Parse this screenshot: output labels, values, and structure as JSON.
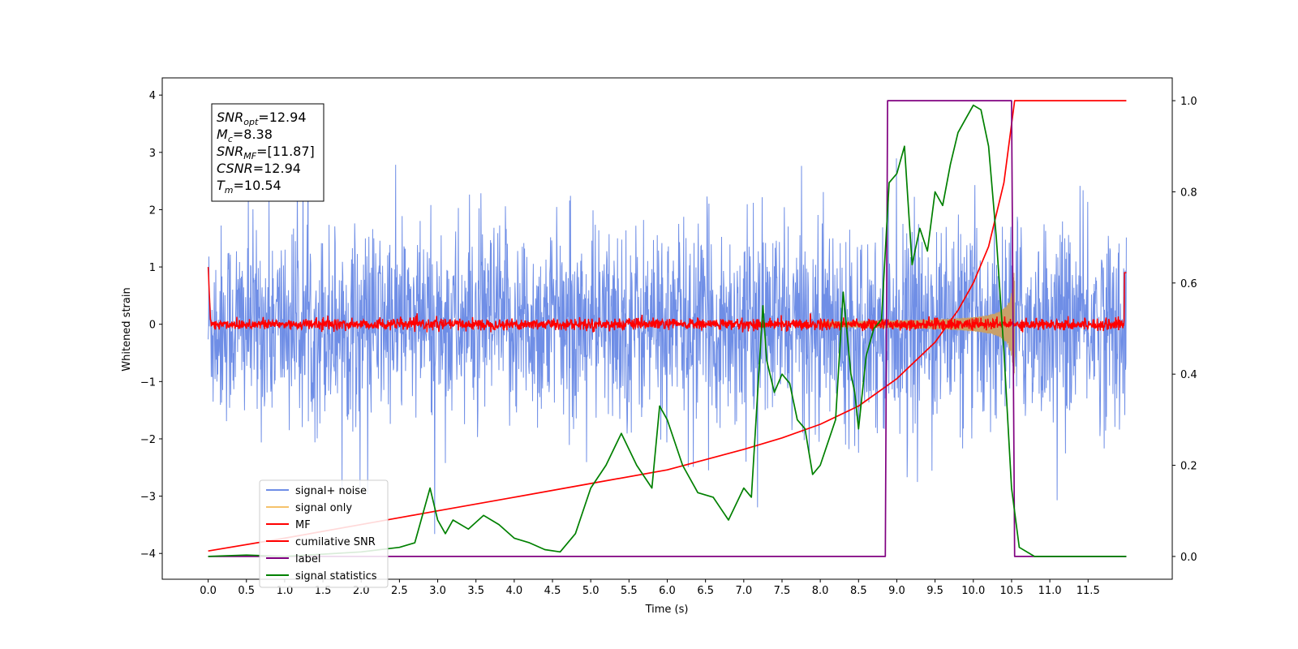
{
  "chart_data": {
    "type": "line",
    "xlabel": "Time (s)",
    "ylabel": "Whitened strain",
    "xlim": [
      -0.6,
      12.6
    ],
    "ylim_left": [
      -4.45,
      4.3
    ],
    "ylim_right": [
      -0.05,
      1.05
    ],
    "x_ticks": [
      "0.0",
      "0.5",
      "1.0",
      "1.5",
      "2.0",
      "2.5",
      "3.0",
      "3.5",
      "4.0",
      "4.5",
      "5.0",
      "5.5",
      "6.0",
      "6.5",
      "7.0",
      "7.5",
      "8.0",
      "8.5",
      "9.0",
      "9.5",
      "10.0",
      "10.5",
      "11.0",
      "11.5"
    ],
    "y_left_ticks": [
      "4",
      "3",
      "2",
      "1",
      "0",
      "−1",
      "−2",
      "−3",
      "−4"
    ],
    "y_right_ticks": [
      "1.0",
      "0.8",
      "0.6",
      "0.4",
      "0.2",
      "0.0"
    ],
    "stats_box": [
      {
        "base": "SNR",
        "sub": "opt",
        "rest": "=12.94"
      },
      {
        "base": "M",
        "sub": "c",
        "rest": "=8.38"
      },
      {
        "base": "SNR",
        "sub": "MF",
        "rest": "=[11.87]"
      },
      {
        "base": "CSNR",
        "sub": "",
        "rest": "=12.94"
      },
      {
        "base": "T",
        "sub": "m",
        "rest": "=10.54"
      }
    ],
    "legend": [
      {
        "label": "signal+ noise",
        "color": "#6f8ee6"
      },
      {
        "label": "signal only",
        "color": "#f5c26b"
      },
      {
        "label": "MF",
        "color": "#ff0000"
      },
      {
        "label": "cumilative SNR",
        "color": "#ff0000"
      },
      {
        "label": "label",
        "color": "#800080"
      },
      {
        "label": "signal statistics",
        "color": "#008000"
      }
    ],
    "series": [
      {
        "name": "signal+ noise",
        "axis": "left",
        "color": "#6f8ee6",
        "noise_std": 0.85,
        "x_range": [
          0.0,
          12.0
        ]
      },
      {
        "name": "signal only",
        "axis": "left",
        "color": "#c8a06a",
        "chirp_start": 8.0,
        "merger": 10.54,
        "peak_amplitude": 0.9
      },
      {
        "name": "MF",
        "axis": "left",
        "color": "#ff0000",
        "noise_std": 0.05,
        "x_range": [
          0.0,
          12.0
        ]
      },
      {
        "name": "cumilative SNR",
        "axis": "right",
        "color": "#ff0000",
        "x": [
          0.0,
          1.0,
          2.0,
          3.0,
          4.0,
          5.0,
          6.0,
          7.0,
          7.5,
          8.0,
          8.5,
          9.0,
          9.5,
          9.8,
          10.0,
          10.2,
          10.4,
          10.54,
          12.0
        ],
        "y": [
          0.012,
          0.04,
          0.07,
          0.1,
          0.13,
          0.16,
          0.19,
          0.235,
          0.26,
          0.29,
          0.33,
          0.39,
          0.47,
          0.54,
          0.6,
          0.68,
          0.82,
          1.0,
          1.0
        ]
      },
      {
        "name": "label",
        "axis": "right",
        "color": "#800080",
        "x": [
          0.0,
          8.85,
          8.88,
          10.5,
          10.54,
          12.0
        ],
        "y": [
          0.0,
          0.0,
          1.0,
          1.0,
          0.0,
          0.0
        ]
      },
      {
        "name": "signal statistics",
        "axis": "right",
        "color": "#008000",
        "x": [
          0.0,
          0.5,
          1.0,
          1.5,
          2.0,
          2.5,
          2.7,
          2.9,
          3.0,
          3.1,
          3.2,
          3.4,
          3.6,
          3.8,
          4.0,
          4.2,
          4.4,
          4.6,
          4.8,
          5.0,
          5.2,
          5.4,
          5.6,
          5.8,
          5.9,
          6.0,
          6.2,
          6.4,
          6.6,
          6.8,
          7.0,
          7.1,
          7.25,
          7.3,
          7.4,
          7.5,
          7.6,
          7.7,
          7.8,
          7.9,
          8.0,
          8.2,
          8.3,
          8.4,
          8.45,
          8.5,
          8.6,
          8.7,
          8.8,
          8.9,
          9.0,
          9.1,
          9.2,
          9.3,
          9.4,
          9.5,
          9.6,
          9.7,
          9.8,
          9.9,
          10.0,
          10.1,
          10.2,
          10.3,
          10.4,
          10.5,
          10.6,
          10.8,
          11.0,
          11.5,
          12.0
        ],
        "y": [
          0.0,
          0.003,
          0.0,
          0.005,
          0.01,
          0.02,
          0.03,
          0.15,
          0.08,
          0.05,
          0.08,
          0.06,
          0.09,
          0.07,
          0.04,
          0.03,
          0.015,
          0.01,
          0.05,
          0.15,
          0.2,
          0.27,
          0.2,
          0.15,
          0.33,
          0.3,
          0.2,
          0.14,
          0.13,
          0.08,
          0.15,
          0.13,
          0.55,
          0.43,
          0.36,
          0.4,
          0.38,
          0.3,
          0.28,
          0.18,
          0.2,
          0.3,
          0.58,
          0.4,
          0.36,
          0.28,
          0.44,
          0.5,
          0.52,
          0.82,
          0.84,
          0.9,
          0.64,
          0.72,
          0.67,
          0.8,
          0.77,
          0.86,
          0.93,
          0.96,
          0.99,
          0.98,
          0.9,
          0.7,
          0.45,
          0.15,
          0.02,
          0.0,
          0.0,
          0.0,
          0.0
        ]
      }
    ]
  }
}
